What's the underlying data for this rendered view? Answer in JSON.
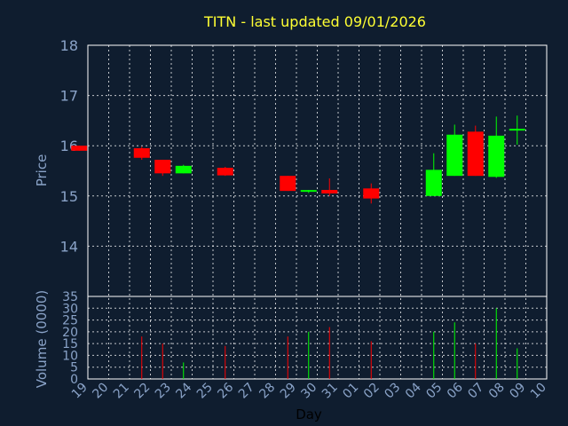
{
  "chart_data": {
    "type": "candlestick",
    "title": "TITN - last updated 09/01/2026",
    "price_axis": {
      "label": "Price",
      "ylim": [
        13,
        18
      ],
      "ticks": [
        14,
        15,
        16,
        17,
        18
      ]
    },
    "volume_axis": {
      "label": "Volume (0000)",
      "ylim": [
        0,
        35
      ],
      "ticks": [
        0,
        5,
        10,
        15,
        20,
        25,
        30,
        35
      ]
    },
    "x_axis": {
      "label": "Day",
      "ticks": [
        "19",
        "20",
        "21",
        "22",
        "23",
        "24",
        "25",
        "26",
        "27",
        "28",
        "29",
        "30",
        "31",
        "01",
        "02",
        "03",
        "04",
        "05",
        "06",
        "07",
        "08",
        "09",
        "10"
      ]
    },
    "grid": true,
    "colors": {
      "up": "#00ff00",
      "down": "#ff0000",
      "title": "#ffff33",
      "axis_text": "#8aa3c8",
      "background": "#0f1d2f"
    },
    "candles": [
      {
        "day": "19",
        "open": 16.0,
        "high": 16.0,
        "low": 15.9,
        "close": 15.9,
        "volume": 0
      },
      {
        "day": "22",
        "open": 15.95,
        "high": 15.98,
        "low": 15.72,
        "close": 15.76,
        "volume": 18
      },
      {
        "day": "23",
        "open": 15.72,
        "high": 15.72,
        "low": 15.4,
        "close": 15.45,
        "volume": 15
      },
      {
        "day": "24",
        "open": 15.45,
        "high": 15.62,
        "low": 15.45,
        "close": 15.6,
        "volume": 7
      },
      {
        "day": "26",
        "open": 15.56,
        "high": 15.58,
        "low": 15.4,
        "close": 15.41,
        "volume": 14
      },
      {
        "day": "29",
        "open": 15.4,
        "high": 15.4,
        "low": 15.1,
        "close": 15.1,
        "volume": 18
      },
      {
        "day": "30",
        "open": 15.08,
        "high": 15.12,
        "low": 15.06,
        "close": 15.1,
        "volume": 20
      },
      {
        "day": "31",
        "open": 15.12,
        "high": 15.35,
        "low": 15.0,
        "close": 15.05,
        "volume": 22
      },
      {
        "day": "02",
        "open": 15.15,
        "high": 15.25,
        "low": 14.85,
        "close": 14.95,
        "volume": 16
      },
      {
        "day": "05",
        "open": 15.0,
        "high": 15.85,
        "low": 15.0,
        "close": 15.52,
        "volume": 20
      },
      {
        "day": "06",
        "open": 15.4,
        "high": 16.42,
        "low": 15.4,
        "close": 16.22,
        "volume": 24
      },
      {
        "day": "07",
        "open": 16.28,
        "high": 16.4,
        "low": 15.4,
        "close": 15.4,
        "volume": 15
      },
      {
        "day": "08",
        "open": 15.38,
        "high": 16.58,
        "low": 15.36,
        "close": 16.2,
        "volume": 30
      },
      {
        "day": "09",
        "open": 16.3,
        "high": 16.6,
        "low": 16.02,
        "close": 16.32,
        "volume": 13
      }
    ]
  }
}
